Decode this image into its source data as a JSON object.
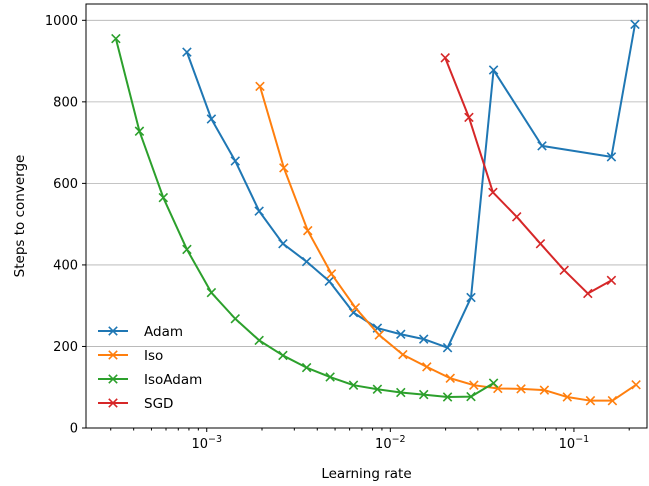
{
  "chart_data": {
    "type": "line",
    "xlabel": "Learning rate",
    "ylabel": "Steps to converge",
    "xscale": "log",
    "xlim": [
      0.00022,
      0.25
    ],
    "ylim": [
      0,
      1040
    ],
    "x_ticks": [
      {
        "value": 0.001,
        "label": "10^-3"
      },
      {
        "value": 0.01,
        "label": "10^-2"
      },
      {
        "value": 0.1,
        "label": "10^-1"
      }
    ],
    "y_ticks": [
      0,
      200,
      400,
      600,
      800,
      1000
    ],
    "grid": "horizontal",
    "legend_position": "lower-left",
    "marker": "x",
    "series": [
      {
        "name": "Adam",
        "color": "#1f77b4",
        "points": [
          [
            0.00078,
            922
          ],
          [
            0.00106,
            758
          ],
          [
            0.00143,
            655
          ],
          [
            0.00193,
            532
          ],
          [
            0.0026,
            452
          ],
          [
            0.0035,
            408
          ],
          [
            0.00465,
            360
          ],
          [
            0.0063,
            283
          ],
          [
            0.0085,
            245
          ],
          [
            0.0114,
            230
          ],
          [
            0.0152,
            218
          ],
          [
            0.0205,
            197
          ],
          [
            0.0275,
            320
          ],
          [
            0.0365,
            878
          ],
          [
            0.067,
            692
          ],
          [
            0.16,
            665
          ],
          [
            0.215,
            990
          ]
        ]
      },
      {
        "name": "Iso",
        "color": "#ff7f0e",
        "points": [
          [
            0.00195,
            838
          ],
          [
            0.00263,
            638
          ],
          [
            0.00355,
            484
          ],
          [
            0.00478,
            378
          ],
          [
            0.00645,
            295
          ],
          [
            0.0087,
            228
          ],
          [
            0.0117,
            180
          ],
          [
            0.0158,
            150
          ],
          [
            0.0212,
            122
          ],
          [
            0.0285,
            105
          ],
          [
            0.0385,
            97
          ],
          [
            0.0515,
            96
          ],
          [
            0.069,
            93
          ],
          [
            0.092,
            76
          ],
          [
            0.123,
            67
          ],
          [
            0.162,
            67
          ],
          [
            0.218,
            106
          ]
        ]
      },
      {
        "name": "IsoAdam",
        "color": "#2ca02c",
        "points": [
          [
            0.00032,
            955
          ],
          [
            0.00043,
            728
          ],
          [
            0.00058,
            565
          ],
          [
            0.00078,
            438
          ],
          [
            0.00106,
            332
          ],
          [
            0.00143,
            268
          ],
          [
            0.00193,
            215
          ],
          [
            0.0026,
            178
          ],
          [
            0.0035,
            148
          ],
          [
            0.0047,
            125
          ],
          [
            0.0063,
            105
          ],
          [
            0.0085,
            95
          ],
          [
            0.0114,
            87
          ],
          [
            0.0152,
            82
          ],
          [
            0.0205,
            76
          ],
          [
            0.0275,
            77
          ],
          [
            0.0365,
            110
          ]
        ]
      },
      {
        "name": "SGD",
        "color": "#d62728",
        "points": [
          [
            0.0199,
            908
          ],
          [
            0.0268,
            762
          ],
          [
            0.0362,
            578
          ],
          [
            0.0488,
            518
          ],
          [
            0.0657,
            452
          ],
          [
            0.0885,
            387
          ],
          [
            0.119,
            330
          ],
          [
            0.16,
            362
          ]
        ]
      }
    ]
  }
}
